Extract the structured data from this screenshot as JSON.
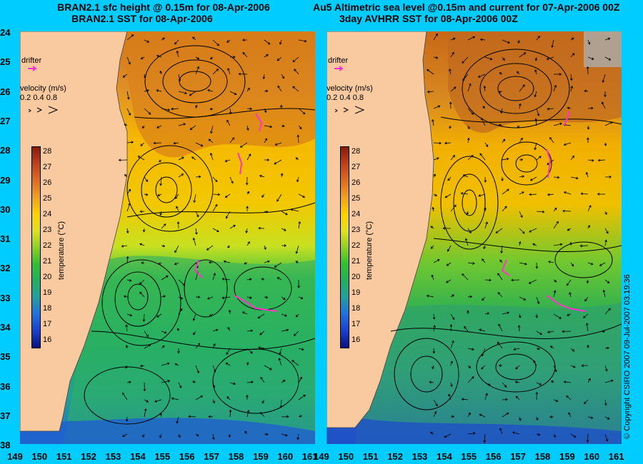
{
  "left_panel": {
    "title_line1": "BRAN2.1 sfc height @ 0.15m for 08-Apr-2006",
    "title_line2": "BRAN2.1 SST for 08-Apr-2006",
    "drifter_label": "drifter",
    "velocity_label": "velocity (m/s)",
    "velocity_scale": "0.2 0.4 0.8",
    "colorbar_label": "temperature (°C)"
  },
  "right_panel": {
    "title_line1": "Au5 Altimetric sea level  @0.15m and current for 07-Apr-2006 00Z",
    "title_line2": "3day AVHRR SST for 08-Apr-2006 00Z",
    "drifter_label": "drifter",
    "velocity_label": "velocity (m/s)",
    "velocity_scale": "0.2 0.4 0.8",
    "colorbar_label": "temperature (°C)"
  },
  "lat_ticks": [
    "24",
    "25",
    "26",
    "27",
    "28",
    "29",
    "30",
    "31",
    "32",
    "33",
    "34",
    "35",
    "36",
    "37",
    "38"
  ],
  "lon_ticks": [
    "149",
    "150",
    "151",
    "152",
    "153",
    "154",
    "155",
    "156",
    "157",
    "158",
    "159",
    "160",
    "161"
  ],
  "colorbar_ticks": [
    "28",
    "27",
    "26",
    "25",
    "24",
    "23",
    "22",
    "21",
    "20",
    "19",
    "18",
    "17",
    "16"
  ],
  "colors": {
    "background": "#00ccff",
    "land": "#f9c9a0",
    "drifter": "#ff33cc",
    "warm": "#d06a10",
    "cool": "#1a60e0"
  },
  "copyright": "© Copyright CSIRO 2007   09-Jul-2007 03:19:36"
}
